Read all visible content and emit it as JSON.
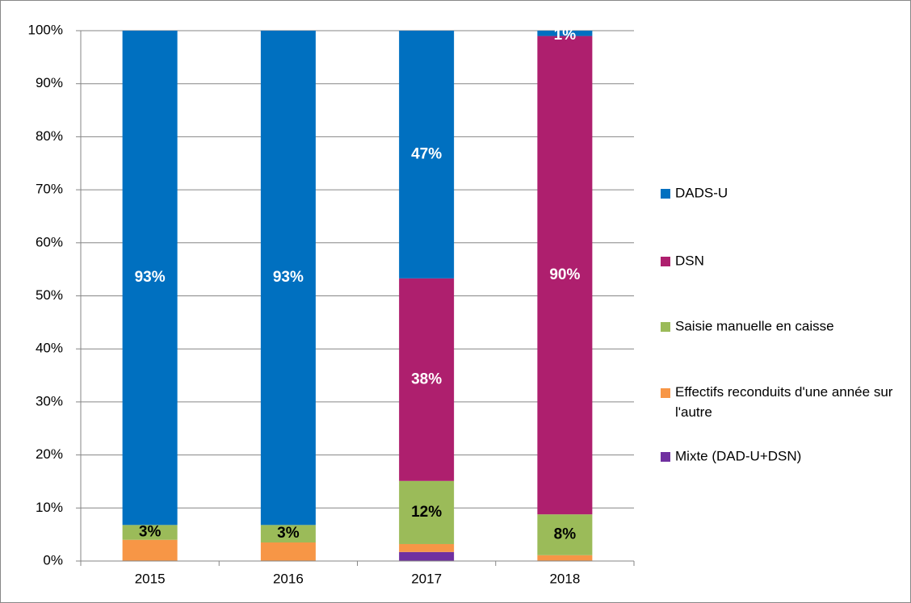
{
  "chart_data": {
    "type": "stacked_bar",
    "categories": [
      "2015",
      "2016",
      "2017",
      "2018"
    ],
    "series": [
      {
        "name": "DADS-U",
        "color": "#0070c0",
        "values": [
          93.2,
          93.2,
          46.7,
          1.0
        ],
        "value_labels": [
          "93%",
          "93%",
          "47%",
          "1%"
        ],
        "label_color": "#ffffff"
      },
      {
        "name": "DSN",
        "color": "#ae1f6e",
        "values": [
          0,
          0,
          38.2,
          90.2
        ],
        "value_labels": [
          null,
          null,
          "38%",
          "90%"
        ],
        "label_color": "#ffffff"
      },
      {
        "name": "Saisie manuelle en caisse",
        "color": "#9bbb59",
        "values": [
          2.8,
          3.3,
          11.9,
          7.7
        ],
        "value_labels": [
          "3%",
          "3%",
          "12%",
          "8%"
        ],
        "label_color": "#000000"
      },
      {
        "name": "Effectifs reconduits d'une année sur l'autre",
        "color": "#f79646",
        "values": [
          4.0,
          3.5,
          1.5,
          1.1
        ],
        "value_labels": [
          null,
          null,
          null,
          null
        ],
        "label_color": "#000000"
      },
      {
        "name": "Mixte (DAD-U+DSN)",
        "color": "#7030a0",
        "values": [
          0,
          0,
          1.7,
          0
        ],
        "value_labels": [
          null,
          null,
          null,
          null
        ],
        "label_color": "#ffffff"
      }
    ],
    "ylim": [
      0,
      100
    ],
    "yticks": [
      {
        "value": 0,
        "label": "0%"
      },
      {
        "value": 10,
        "label": "10%"
      },
      {
        "value": 20,
        "label": "20%"
      },
      {
        "value": 30,
        "label": "30%"
      },
      {
        "value": 40,
        "label": "40%"
      },
      {
        "value": 50,
        "label": "50%"
      },
      {
        "value": 60,
        "label": "60%"
      },
      {
        "value": 70,
        "label": "70%"
      },
      {
        "value": 80,
        "label": "80%"
      },
      {
        "value": 90,
        "label": "90%"
      },
      {
        "value": 100,
        "label": "100%"
      }
    ],
    "grid": true,
    "legend": "right"
  }
}
